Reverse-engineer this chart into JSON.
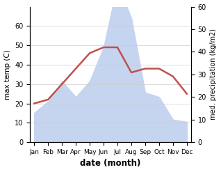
{
  "months": [
    "Jan",
    "Feb",
    "Mar",
    "Apr",
    "May",
    "Jun",
    "Jul",
    "Aug",
    "Sep",
    "Oct",
    "Nov",
    "Dec"
  ],
  "temperature": [
    20,
    22,
    30,
    38,
    46,
    49,
    49,
    36,
    38,
    38,
    34,
    25
  ],
  "precipitation": [
    13,
    18,
    27,
    20,
    27,
    42,
    70,
    55,
    22,
    20,
    10,
    9
  ],
  "temp_color": "#c0504d",
  "precip_color": "#c5d4ef",
  "temp_ylim": [
    0,
    70
  ],
  "precip_ylim": [
    0,
    60
  ],
  "temp_yticks": [
    0,
    10,
    20,
    30,
    40,
    50,
    60,
    70
  ],
  "precip_yticks": [
    0,
    10,
    20,
    30,
    40,
    50,
    60
  ],
  "xlabel": "date (month)",
  "ylabel_left": "max temp (C)",
  "ylabel_right": "med. precipitation (kg/m2)",
  "grid_color": "#cccccc"
}
